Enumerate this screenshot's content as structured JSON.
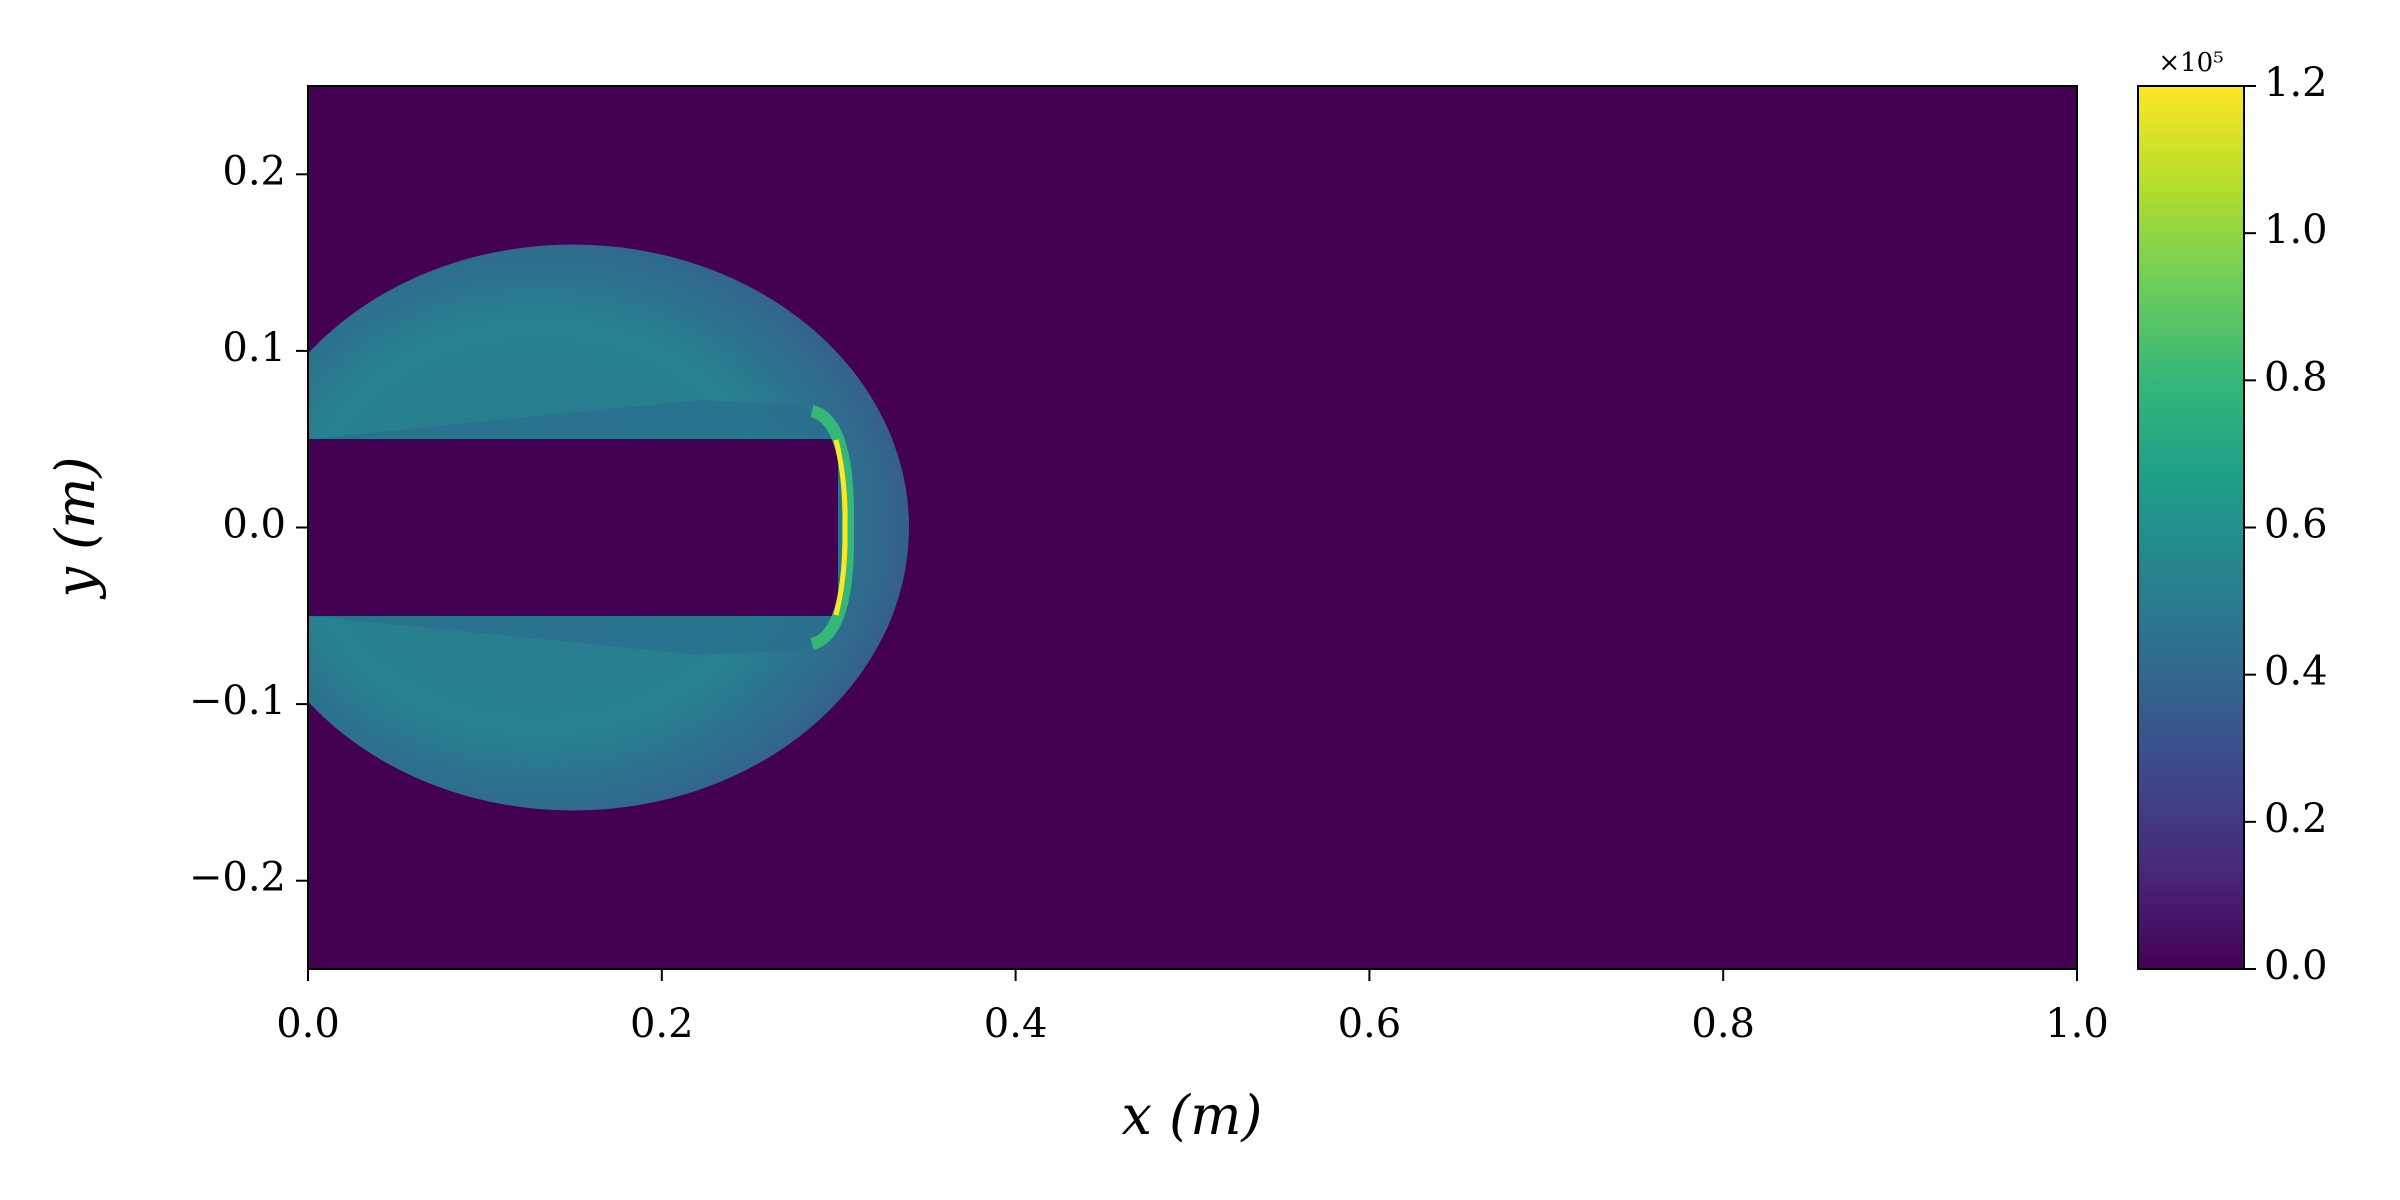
{
  "chart_data": {
    "type": "field",
    "x_label": "x (m)",
    "y_label": "y (m)",
    "xlim": [
      0,
      1
    ],
    "ylim": [
      -0.25,
      0.25
    ],
    "xticks": [
      {
        "value": 0,
        "label": "0.0"
      },
      0.2,
      0.4,
      0.6,
      0.8,
      {
        "value": 1,
        "label": "1.0"
      }
    ],
    "yticks": [
      {
        "value": -0.2,
        "label": "−0.2"
      },
      {
        "value": -0.1,
        "label": "−0.1"
      },
      {
        "value": 0,
        "label": "0.0"
      },
      0.1,
      0.2
    ],
    "colorbar": {
      "lim": [
        0,
        120000
      ],
      "ticks": [
        {
          "value": 0,
          "label": "0.0"
        },
        {
          "value": 20000,
          "label": "0.2"
        },
        {
          "value": 40000,
          "label": "0.4"
        },
        {
          "value": 60000,
          "label": "0.6"
        },
        {
          "value": 80000,
          "label": "0.8"
        },
        {
          "value": 100000,
          "label": "1.0"
        },
        {
          "value": 120000,
          "label": "1.2"
        }
      ],
      "offset_label": "×10⁵",
      "colors": [
        "#440154",
        "#482878",
        "#3e4989",
        "#31688e",
        "#26828e",
        "#1f9e89",
        "#35b779",
        "#6ece58",
        "#b5de2b",
        "#fde725"
      ]
    }
  }
}
